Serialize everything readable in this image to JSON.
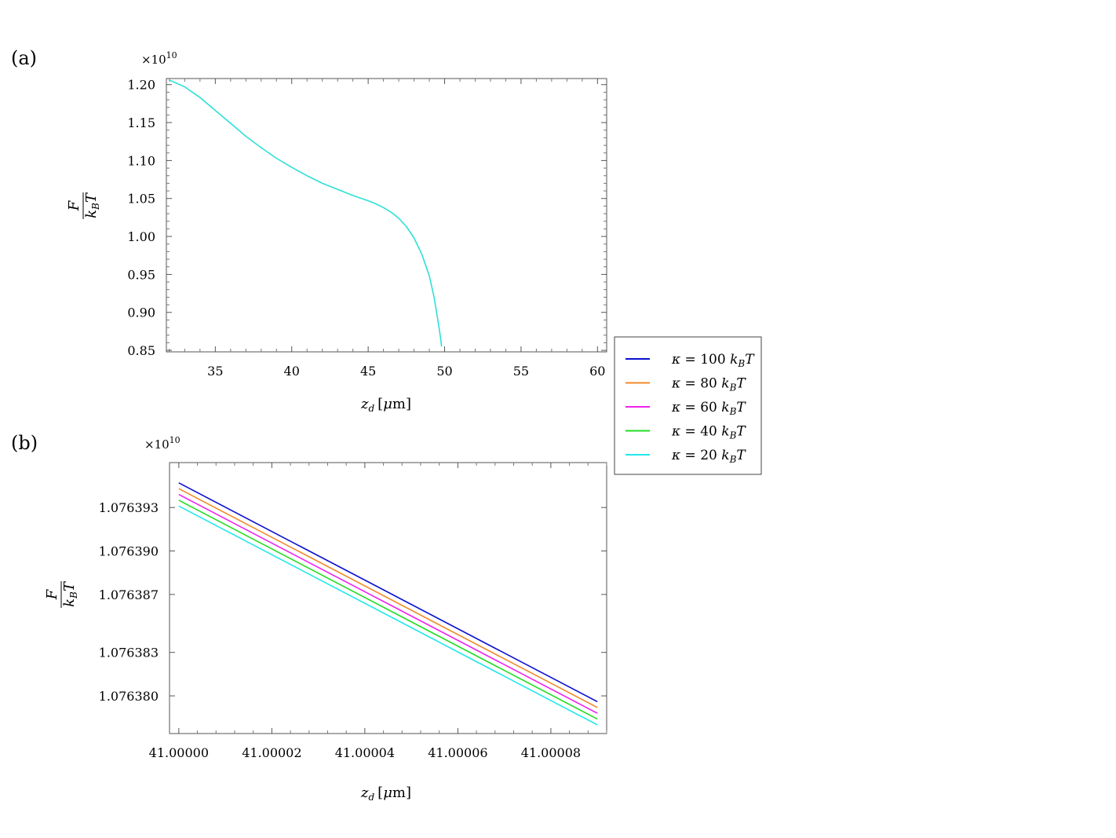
{
  "panel_labels": [
    "(a)",
    "(b)"
  ],
  "chart_data": [
    {
      "type": "line",
      "panel": "(a)",
      "multiplier": "×10",
      "multiplier_exp": "10",
      "xlabel": {
        "var": "z",
        "sub": "d",
        "unit_open": "[",
        "unit_mu": "μ",
        "unit_rest": "m]"
      },
      "ylabel": {
        "num": "F",
        "den_var": "k",
        "den_sub": "B",
        "den_rest": "T"
      },
      "xlim": [
        31.8,
        60.6
      ],
      "ylim": [
        0.848,
        1.208
      ],
      "xticks": [
        35,
        40,
        45,
        50,
        55,
        60
      ],
      "xtick_labels": [
        "35",
        "40",
        "45",
        "50",
        "55",
        "60"
      ],
      "yticks": [
        0.85,
        0.9,
        0.95,
        1.0,
        1.05,
        1.1,
        1.15,
        1.2
      ],
      "ytick_labels": [
        "0.85",
        "0.90",
        "0.95",
        "1.00",
        "1.05",
        "1.10",
        "1.15",
        "1.20"
      ],
      "grid": false,
      "series": [
        {
          "color": "#2ee0d6",
          "x": [
            32.0,
            33.0,
            34.0,
            35.0,
            36.0,
            37.0,
            38.0,
            39.0,
            40.0,
            41.0,
            42.0,
            43.0,
            44.0,
            45.0,
            45.5,
            46.0,
            46.5,
            47.0,
            47.5,
            48.0,
            48.5,
            49.0,
            49.3,
            49.5,
            49.65,
            49.75,
            49.8
          ],
          "y": [
            1.206,
            1.197,
            1.183,
            1.166,
            1.149,
            1.132,
            1.117,
            1.103,
            1.091,
            1.08,
            1.07,
            1.062,
            1.054,
            1.047,
            1.043,
            1.038,
            1.032,
            1.024,
            1.013,
            0.998,
            0.977,
            0.948,
            0.921,
            0.897,
            0.878,
            0.864,
            0.855
          ]
        }
      ]
    },
    {
      "type": "line",
      "panel": "(b)",
      "multiplier": "×10",
      "multiplier_exp": "10",
      "xlabel": {
        "var": "z",
        "sub": "d",
        "unit_open": "[",
        "unit_mu": "μ",
        "unit_rest": "m]"
      },
      "ylabel": {
        "num": "F",
        "den_var": "k",
        "den_sub": "B",
        "den_rest": "T"
      },
      "xlim": [
        40.999998,
        41.000092
      ],
      "ylim": [
        1.0763774,
        1.0763961
      ],
      "xticks": [
        41.0,
        41.00002,
        41.00004,
        41.00006,
        41.00008
      ],
      "xtick_labels": [
        "41.00000",
        "41.00002",
        "41.00004",
        "41.00006",
        "41.00008"
      ],
      "yticks": [
        1.07638,
        1.076383,
        1.076387,
        1.07639,
        1.076393
      ],
      "ytick_labels": [
        "1.076380",
        "1.076383",
        "1.076387",
        "1.076390",
        "1.076393"
      ],
      "grid": false,
      "legend": "right",
      "series": [
        {
          "name": "κ = 100 k_B T",
          "legend_kappa": "κ = 100",
          "color": "#0a10d0",
          "x": [
            41.0,
            41.00009
          ],
          "y": [
            1.0763947,
            1.0763796
          ]
        },
        {
          "name": "κ = 80 k_B T",
          "legend_kappa": "κ = 80",
          "color": "#f08a2a",
          "x": [
            41.0,
            41.00009
          ],
          "y": [
            1.0763943,
            1.0763792
          ]
        },
        {
          "name": "κ = 60 k_B T",
          "legend_kappa": "κ = 60",
          "color": "#ee22ee",
          "x": [
            41.0,
            41.00009
          ],
          "y": [
            1.0763939,
            1.0763788
          ]
        },
        {
          "name": "κ = 40 k_B T",
          "legend_kappa": "κ = 40",
          "color": "#22dd22",
          "x": [
            41.0,
            41.00009
          ],
          "y": [
            1.0763935,
            1.0763784
          ]
        },
        {
          "name": "κ = 20 k_B T",
          "legend_kappa": "κ = 20",
          "color": "#22e8e8",
          "x": [
            41.0,
            41.00009
          ],
          "y": [
            1.0763931,
            1.076378
          ]
        }
      ]
    }
  ]
}
